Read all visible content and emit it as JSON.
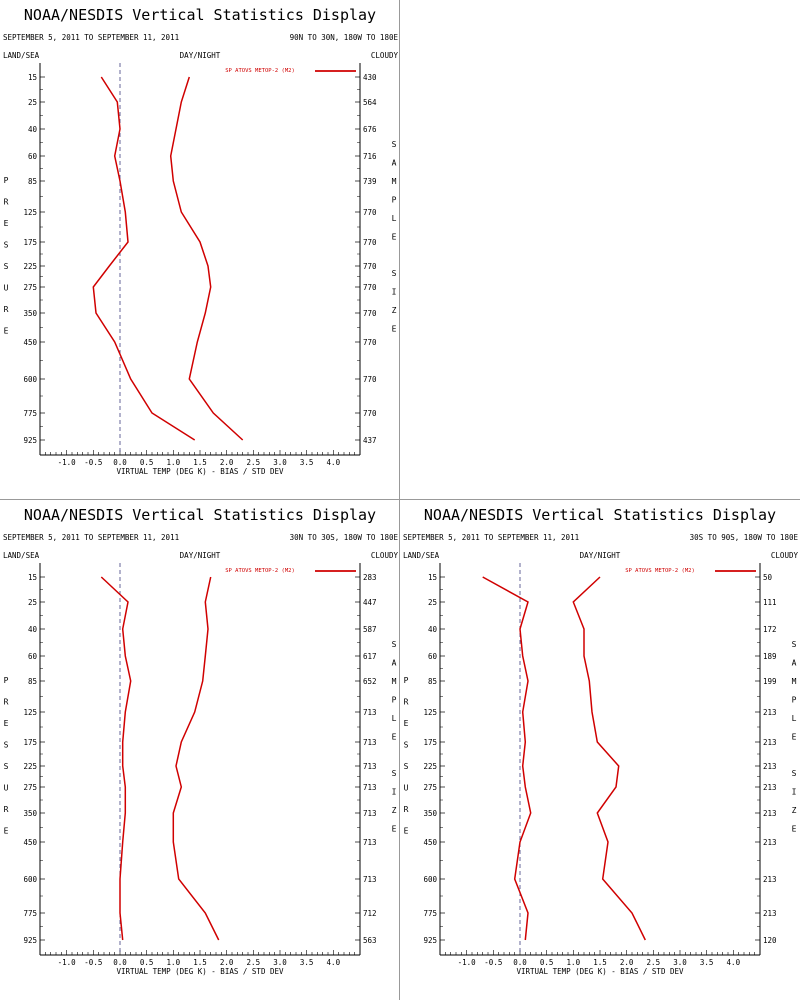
{
  "chart_data": [
    {
      "type": "line",
      "title": "NOAA/NESDIS Vertical Statistics Display",
      "date_range": "SEPTEMBER 5, 2011 TO SEPTEMBER 11, 2011",
      "region": "90N TO 30N, 180W TO 180E",
      "label_left": "LAND/SEA",
      "label_center": "DAY/NIGHT",
      "label_right": "CLOUDY",
      "ylabel": "PRESSURE",
      "y2label": "SAMPLE SIZE",
      "xlabel": "VIRTUAL TEMP (DEG K) - BIAS / STD DEV",
      "x_ticks": [
        "-1.0",
        "-0.5",
        "0.0",
        "0.5",
        "1.0",
        "1.5",
        "2.0",
        "2.5",
        "3.0",
        "3.5",
        "4.0"
      ],
      "xlim": [
        -1.5,
        4.5
      ],
      "legend": "SP ATOVS METOP-2 (M2)",
      "pressure_levels": [
        "15",
        "25",
        "40",
        "60",
        "85",
        "125",
        "175",
        "225",
        "275",
        "350",
        "450",
        "600",
        "775",
        "925"
      ],
      "sample_sizes": [
        "430",
        "564",
        "676",
        "716",
        "739",
        "770",
        "770",
        "770",
        "770",
        "770",
        "770",
        "770",
        "770",
        "437"
      ],
      "series": [
        {
          "name": "bias",
          "values": [
            -0.35,
            -0.05,
            0.0,
            -0.1,
            0.0,
            0.1,
            0.15,
            -0.2,
            -0.5,
            -0.45,
            -0.1,
            0.2,
            0.6,
            1.4
          ]
        },
        {
          "name": "std_dev",
          "values": [
            1.3,
            1.15,
            1.05,
            0.95,
            1.0,
            1.15,
            1.5,
            1.65,
            1.7,
            1.6,
            1.45,
            1.3,
            1.75,
            2.3
          ]
        }
      ],
      "color": "#d00000"
    },
    {
      "type": "line",
      "title": "NOAA/NESDIS Vertical Statistics Display",
      "date_range": "SEPTEMBER 5, 2011 TO SEPTEMBER 11, 2011",
      "region": "30N TO 30S, 180W TO 180E",
      "label_left": "LAND/SEA",
      "label_center": "DAY/NIGHT",
      "label_right": "CLOUDY",
      "ylabel": "PRESSURE",
      "y2label": "SAMPLE SIZE",
      "xlabel": "VIRTUAL TEMP (DEG K) - BIAS / STD DEV",
      "x_ticks": [
        "-1.0",
        "-0.5",
        "0.0",
        "0.5",
        "1.0",
        "1.5",
        "2.0",
        "2.5",
        "3.0",
        "3.5",
        "4.0"
      ],
      "xlim": [
        -1.5,
        4.5
      ],
      "legend": "SP ATOVS METOP-2 (M2)",
      "pressure_levels": [
        "15",
        "25",
        "40",
        "60",
        "85",
        "125",
        "175",
        "225",
        "275",
        "350",
        "450",
        "600",
        "775",
        "925"
      ],
      "sample_sizes": [
        "283",
        "447",
        "587",
        "617",
        "652",
        "713",
        "713",
        "713",
        "713",
        "713",
        "713",
        "713",
        "712",
        "563"
      ],
      "series": [
        {
          "name": "bias",
          "values": [
            -0.35,
            0.15,
            0.05,
            0.1,
            0.2,
            0.1,
            0.05,
            0.05,
            0.1,
            0.1,
            0.05,
            0.0,
            0.0,
            0.05
          ]
        },
        {
          "name": "std_dev",
          "values": [
            1.7,
            1.6,
            1.65,
            1.6,
            1.55,
            1.4,
            1.15,
            1.05,
            1.15,
            1.0,
            1.0,
            1.1,
            1.6,
            1.85
          ]
        }
      ],
      "color": "#d00000"
    },
    {
      "type": "line",
      "title": "NOAA/NESDIS Vertical Statistics Display",
      "date_range": "SEPTEMBER 5, 2011 TO SEPTEMBER 11, 2011",
      "region": "30S TO 90S, 180W TO 180E",
      "label_left": "LAND/SEA",
      "label_center": "DAY/NIGHT",
      "label_right": "CLOUDY",
      "ylabel": "PRESSURE",
      "y2label": "SAMPLE SIZE",
      "xlabel": "VIRTUAL TEMP (DEG K) - BIAS / STD DEV",
      "x_ticks": [
        "-1.0",
        "-0.5",
        "0.0",
        "0.5",
        "1.0",
        "1.5",
        "2.0",
        "2.5",
        "3.0",
        "3.5",
        "4.0"
      ],
      "xlim": [
        -1.5,
        4.5
      ],
      "legend": "SP ATOVS METOP-2 (M2)",
      "pressure_levels": [
        "15",
        "25",
        "40",
        "60",
        "85",
        "125",
        "175",
        "225",
        "275",
        "350",
        "450",
        "600",
        "775",
        "925"
      ],
      "sample_sizes": [
        "50",
        "111",
        "172",
        "189",
        "199",
        "213",
        "213",
        "213",
        "213",
        "213",
        "213",
        "213",
        "213",
        "120"
      ],
      "series": [
        {
          "name": "bias",
          "values": [
            -0.7,
            0.15,
            0.0,
            0.05,
            0.15,
            0.05,
            0.1,
            0.05,
            0.1,
            0.2,
            0.0,
            -0.1,
            0.15,
            0.1
          ]
        },
        {
          "name": "std_dev",
          "values": [
            1.5,
            1.0,
            1.2,
            1.2,
            1.3,
            1.35,
            1.45,
            1.85,
            1.8,
            1.45,
            1.65,
            1.55,
            2.1,
            2.35
          ]
        }
      ],
      "color": "#d00000"
    }
  ]
}
